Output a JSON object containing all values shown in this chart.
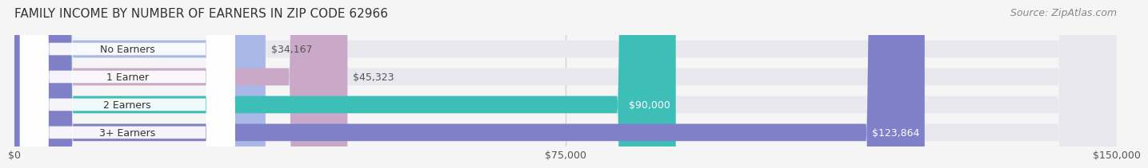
{
  "title": "FAMILY INCOME BY NUMBER OF EARNERS IN ZIP CODE 62966",
  "source": "Source: ZipAtlas.com",
  "categories": [
    "No Earners",
    "1 Earner",
    "2 Earners",
    "3+ Earners"
  ],
  "values": [
    34167,
    45323,
    90000,
    123864
  ],
  "bar_colors": [
    "#aab8e8",
    "#c9a8c8",
    "#3dbfb8",
    "#8080c8"
  ],
  "bar_bg_color": "#e8e8ee",
  "label_colors": [
    "#555555",
    "#555555",
    "#ffffff",
    "#ffffff"
  ],
  "value_labels": [
    "$34,167",
    "$45,323",
    "$90,000",
    "$123,864"
  ],
  "x_ticks": [
    0,
    75000,
    150000
  ],
  "x_tick_labels": [
    "$0",
    "$75,000",
    "$150,000"
  ],
  "xlim": [
    0,
    150000
  ],
  "title_fontsize": 11,
  "source_fontsize": 9,
  "bar_label_fontsize": 9,
  "value_fontsize": 9,
  "tick_fontsize": 9,
  "background_color": "#f5f5f5"
}
